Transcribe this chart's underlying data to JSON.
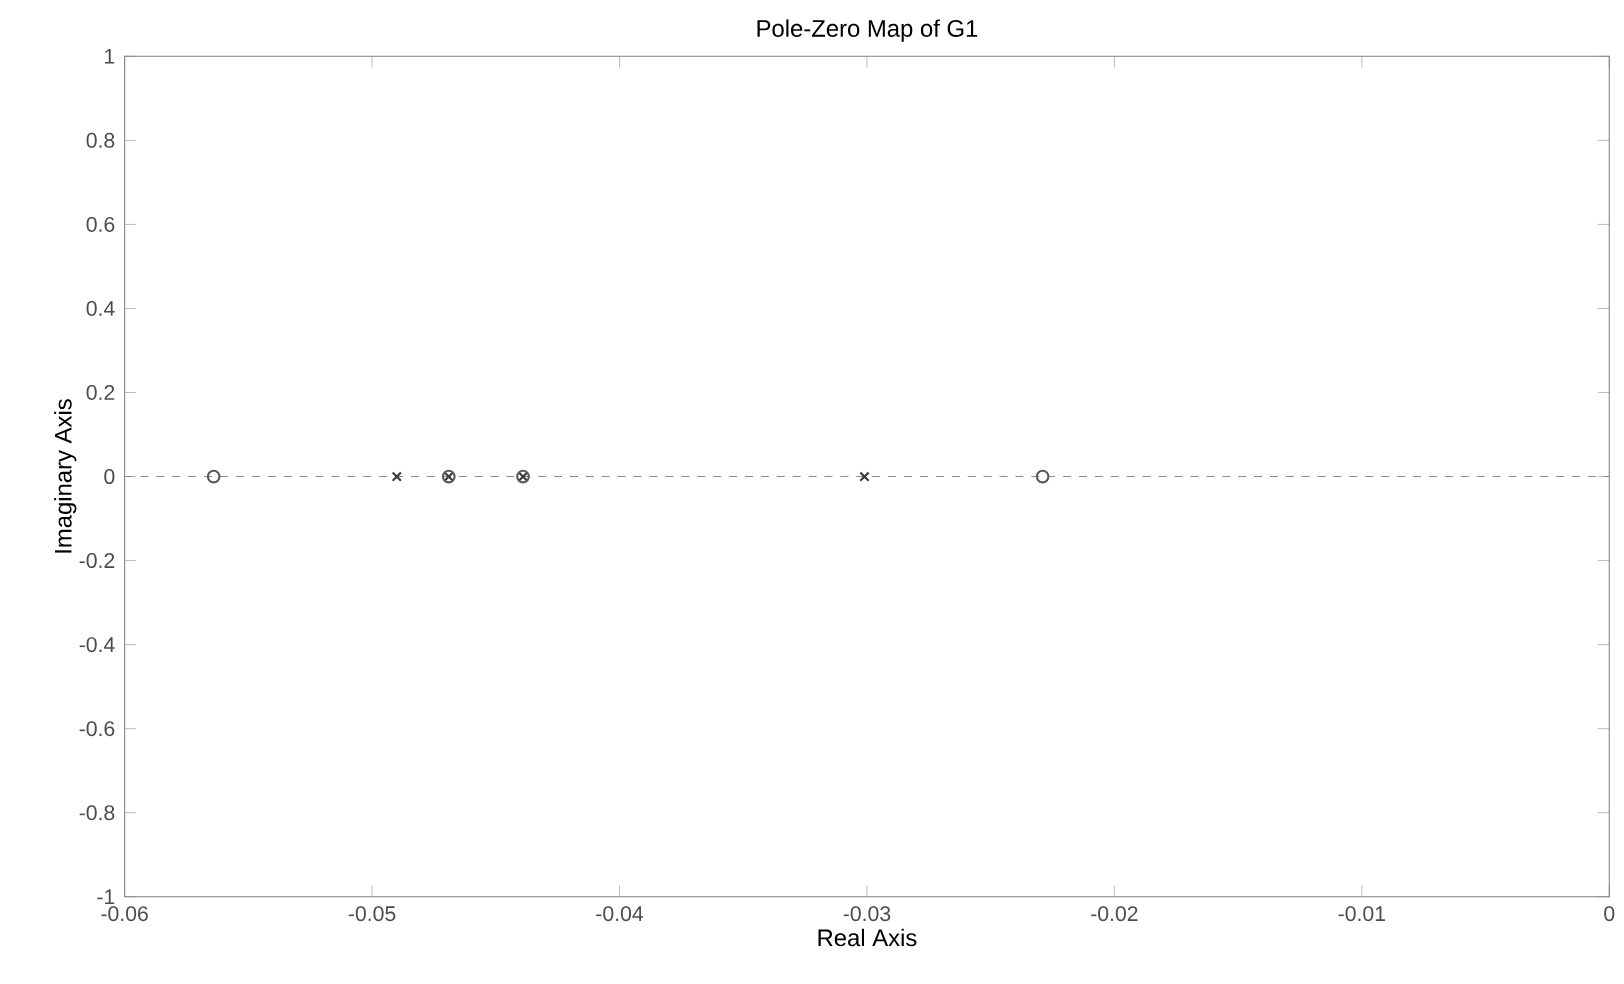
{
  "chart_data": {
    "type": "scatter",
    "title": "Pole-Zero Map of G1",
    "xlabel": "Real Axis",
    "ylabel": "Imaginary Axis",
    "xlim": [
      -0.06,
      0
    ],
    "ylim": [
      -1,
      1
    ],
    "xticks": [
      -0.06,
      -0.05,
      -0.04,
      -0.03,
      -0.02,
      -0.01,
      0
    ],
    "yticks": [
      -1,
      -0.8,
      -0.6,
      -0.4,
      -0.2,
      0,
      0.2,
      0.4,
      0.6,
      0.8,
      1
    ],
    "grid": false,
    "ref_lines": [
      {
        "axis": "y",
        "value": 0,
        "color": "#8c8c8c",
        "line_style": "dashed"
      }
    ],
    "series": [
      {
        "marker": "cross",
        "color": "#3a3a3a",
        "x": [
          -0.049,
          -0.0469,
          -0.0439,
          -0.0301
        ],
        "values": [
          0,
          0,
          0,
          0
        ]
      },
      {
        "marker": "circle",
        "color": "#5a5a5a",
        "x": [
          -0.0564,
          -0.0469,
          -0.0439,
          -0.0229
        ],
        "values": [
          0,
          0,
          0,
          0
        ]
      }
    ]
  }
}
